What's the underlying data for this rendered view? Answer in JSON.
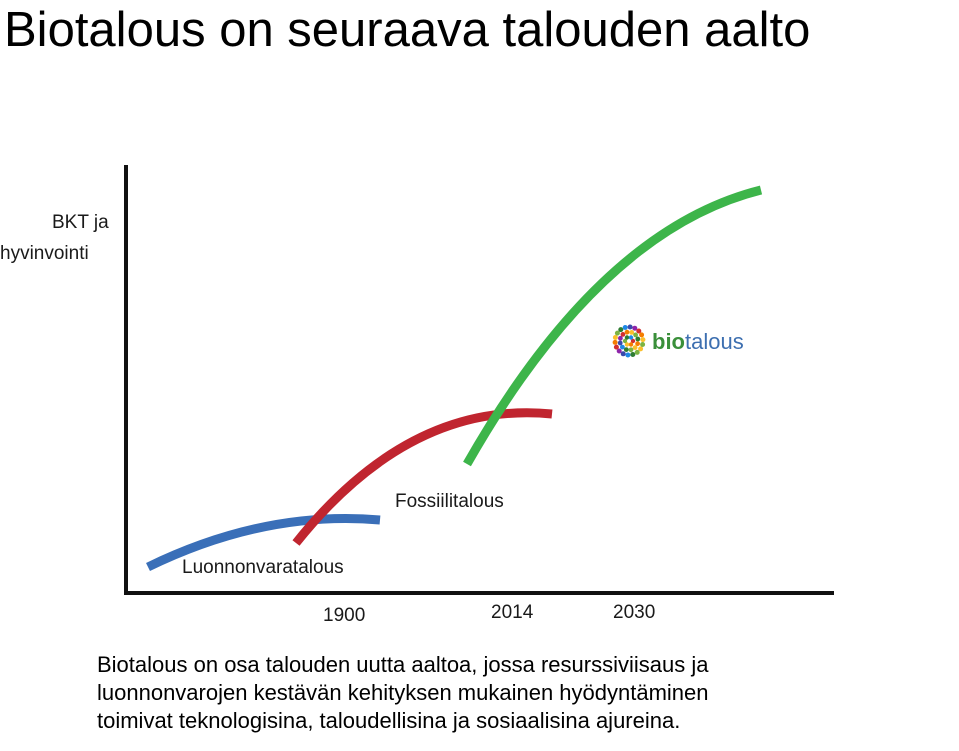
{
  "title": "Biotalous on seuraava talouden aalto",
  "diagram": {
    "y_axis_label_line1": "BKT ja",
    "y_axis_label_line2": "hyvinvointi",
    "ticks": [
      "1900",
      "2014",
      "2030"
    ],
    "curves": [
      {
        "label": "Luonnonvaratalous",
        "color": "#3a6fb8"
      },
      {
        "label": "Fossiilitalous",
        "color": "#c0252f"
      },
      {
        "label": "",
        "color": "#3db54a"
      }
    ],
    "logo": {
      "prefix": "bio",
      "suffix": "talous",
      "prefix_color": "#3a8f3a",
      "suffix_color": "#3d6fb0"
    }
  },
  "caption": {
    "line1": "Biotalous on osa talouden uutta aaltoa, jossa resurssiviisaus ja",
    "line2": "luonnonvarojen kestävän kehityksen mukainen hyödyntäminen",
    "line3": "toimivat teknologisina, taloudellisina ja sosiaalisina ajureina."
  }
}
